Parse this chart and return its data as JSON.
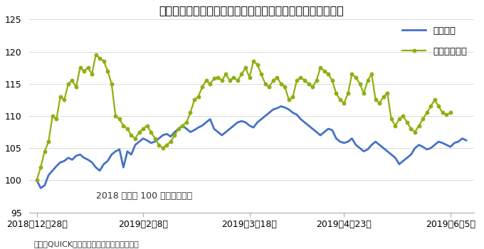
{
  "title": "日経平均と東証マザーズ指数のパフォーマンス推移（日足）",
  "legend_nikkei": "日経平均",
  "legend_mothers": "マザーズ指数",
  "annotation": "2018 年末を 100 として指数化",
  "footnote": "出所：QUICKのデータをもとに東洋証券作成",
  "ylim": [
    95,
    125
  ],
  "yticks": [
    95,
    100,
    105,
    110,
    115,
    120,
    125
  ],
  "nikkei_color": "#4472C4",
  "mothers_color": "#8DB010",
  "nikkei_linewidth": 2.0,
  "mothers_linewidth": 1.6,
  "mothers_marker": "o",
  "mothers_markersize": 3.2,
  "background_color": "#FFFFFF",
  "title_fontsize": 11.5,
  "label_fontsize": 9,
  "annotation_fontsize": 9,
  "footnote_fontsize": 8,
  "legend_fontsize": 9.5,
  "nikkei_data": [
    100.0,
    98.8,
    99.2,
    100.8,
    101.5,
    102.2,
    102.8,
    103.0,
    103.5,
    103.2,
    103.8,
    104.0,
    103.5,
    103.2,
    102.8,
    102.0,
    101.5,
    102.5,
    103.0,
    104.0,
    104.5,
    104.8,
    102.0,
    104.5,
    104.0,
    105.5,
    106.0,
    106.5,
    106.2,
    105.8,
    106.0,
    106.5,
    107.0,
    107.2,
    106.8,
    107.5,
    108.0,
    108.5,
    108.0,
    107.5,
    107.8,
    108.2,
    108.5,
    109.0,
    109.5,
    108.0,
    107.5,
    107.0,
    107.5,
    108.0,
    108.5,
    109.0,
    109.2,
    109.0,
    108.5,
    108.2,
    109.0,
    109.5,
    110.0,
    110.5,
    111.0,
    111.2,
    111.5,
    111.3,
    111.0,
    110.5,
    110.2,
    109.5,
    109.0,
    108.5,
    108.0,
    107.5,
    107.0,
    107.5,
    108.0,
    107.8,
    106.5,
    106.0,
    105.8,
    106.0,
    106.5,
    105.5,
    105.0,
    104.5,
    104.8,
    105.5,
    106.0,
    105.5,
    105.0,
    104.5,
    104.0,
    103.5,
    102.5,
    103.0,
    103.5,
    104.0,
    105.0,
    105.5,
    105.2,
    104.8,
    105.0,
    105.5,
    106.0,
    105.8,
    105.5,
    105.2,
    105.8,
    106.0,
    106.5,
    106.2
  ],
  "mothers_data": [
    100.0,
    102.0,
    104.5,
    106.0,
    110.0,
    109.5,
    113.0,
    112.5,
    115.0,
    115.5,
    114.5,
    117.5,
    117.0,
    117.5,
    116.5,
    119.5,
    119.0,
    118.5,
    117.0,
    115.0,
    110.0,
    109.5,
    108.5,
    108.0,
    107.0,
    106.5,
    107.5,
    108.0,
    108.5,
    107.5,
    106.5,
    105.5,
    105.0,
    105.5,
    106.0,
    107.0,
    108.0,
    108.5,
    109.0,
    110.5,
    112.5,
    113.0,
    114.5,
    115.5,
    115.0,
    115.8,
    116.0,
    115.5,
    116.5,
    115.5,
    116.0,
    115.5,
    116.5,
    117.5,
    116.0,
    118.5,
    118.0,
    116.5,
    115.0,
    114.5,
    115.5,
    116.0,
    115.0,
    114.5,
    112.5,
    113.0,
    115.5,
    116.0,
    115.5,
    115.0,
    114.5,
    115.5,
    117.5,
    117.0,
    116.5,
    115.5,
    113.5,
    112.5,
    112.0,
    113.5,
    116.5,
    116.0,
    115.0,
    113.5,
    115.5,
    116.5,
    112.5,
    112.0,
    113.0,
    113.5,
    109.5,
    108.5,
    109.5,
    110.0,
    109.0,
    108.0,
    107.5,
    108.5,
    109.5,
    110.5,
    111.5,
    112.5,
    111.5,
    110.5,
    110.2,
    110.5
  ],
  "xtick_dates": [
    "2018年12月28日",
    "2019年2月8日",
    "2019年3月18日",
    "2019年4月23日",
    "2019年6月5日"
  ],
  "xtick_positions": [
    0,
    27,
    54,
    78,
    105
  ]
}
